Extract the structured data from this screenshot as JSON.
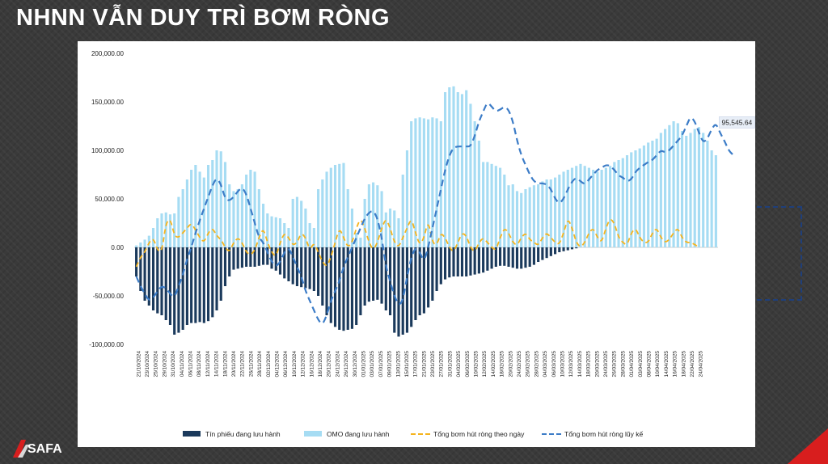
{
  "slide": {
    "title": "NHNN VẪN DUY TRÌ BƠM RÒNG",
    "logo_text": "SAFA"
  },
  "chart_data": {
    "type": "bar",
    "title": "",
    "xlabel": "",
    "ylabel": "",
    "ylim": [
      -100000,
      200000
    ],
    "y_ticks": [
      "200,000.00",
      "150,000.00",
      "100,000.00",
      "50,000.00",
      "0.00",
      "-50,000.00",
      "-100,000.00"
    ],
    "y_tick_values": [
      200000,
      150000,
      100000,
      50000,
      0,
      -50000,
      -100000
    ],
    "x_labels": [
      "21/10/2024",
      "23/10/2024",
      "25/10/2024",
      "29/10/2024",
      "31/10/2024",
      "04/11/2024",
      "06/11/2024",
      "08/11/2024",
      "12/11/2024",
      "14/11/2024",
      "18/11/2024",
      "20/11/2024",
      "22/11/2024",
      "26/11/2024",
      "28/11/2024",
      "02/12/2024",
      "04/12/2024",
      "06/12/2024",
      "10/12/2024",
      "12/12/2024",
      "16/12/2024",
      "18/12/2024",
      "20/12/2024",
      "24/12/2024",
      "26/12/2024",
      "30/12/2024",
      "01/01/2025",
      "03/01/2025",
      "07/01/2025",
      "09/01/2025",
      "13/01/2025",
      "15/01/2025",
      "17/01/2025",
      "21/01/2025",
      "23/01/2025",
      "27/01/2025",
      "31/01/2025",
      "04/02/2025",
      "06/02/2025",
      "10/02/2025",
      "12/02/2025",
      "14/02/2025",
      "18/02/2025",
      "20/02/2025",
      "24/02/2025",
      "26/02/2025",
      "28/02/2025",
      "04/03/2025",
      "06/03/2025",
      "10/03/2025",
      "12/03/2025",
      "14/03/2025",
      "18/03/2025",
      "20/03/2025",
      "24/03/2025",
      "26/03/2025",
      "28/03/2025",
      "01/04/2025",
      "03/04/2025",
      "08/04/2025",
      "10/04/2025",
      "14/04/2025",
      "16/04/2025",
      "18/04/2025",
      "22/04/2025",
      "24/04/2025"
    ],
    "grid": false,
    "legend_position": "bottom",
    "series": [
      {
        "name": "Tín phiếu đang lưu hành",
        "type": "bar",
        "color": "#1b3a5c",
        "values": [
          -30000,
          -45000,
          -55000,
          -60000,
          -65000,
          -68000,
          -70000,
          -75000,
          -80000,
          -90000,
          -88000,
          -85000,
          -80000,
          -78000,
          -78000,
          -77000,
          -78000,
          -76000,
          -72000,
          -65000,
          -55000,
          -40000,
          -30000,
          -23000,
          -22000,
          -21000,
          -20000,
          -20000,
          -20000,
          -19000,
          -18000,
          -18000,
          -22000,
          -24000,
          -28000,
          -32000,
          -35000,
          -38000,
          -40000,
          -41000,
          -42000,
          -43000,
          -45000,
          -50000,
          -60000,
          -70000,
          -78000,
          -82000,
          -85000,
          -86000,
          -85000,
          -84000,
          -80000,
          -70000,
          -60000,
          -56000,
          -55000,
          -54000,
          -58000,
          -65000,
          -70000,
          -88000,
          -92000,
          -90000,
          -88000,
          -82000,
          -75000,
          -70000,
          -68000,
          -62000,
          -55000,
          -45000,
          -38000,
          -33000,
          -31000,
          -30000,
          -30000,
          -30000,
          -30000,
          -29000,
          -28000,
          -27000,
          -26000,
          -24000,
          -22000,
          -20000,
          -19000,
          -19000,
          -20000,
          -21000,
          -22000,
          -22000,
          -21000,
          -20000,
          -18000,
          -15000,
          -13000,
          -11000,
          -9000,
          -7000,
          -5000,
          -4000,
          -3000,
          -2000,
          -1000,
          0,
          0,
          0,
          0,
          0,
          0,
          0,
          0,
          0,
          0,
          0,
          0,
          0,
          0,
          0,
          0,
          0,
          0,
          0,
          0,
          0,
          0,
          0,
          0,
          0,
          0,
          0,
          0,
          0,
          0,
          0,
          0,
          0,
          0,
          0,
          0,
          0,
          0,
          0,
          0,
          0
        ]
      },
      {
        "name": "OMO đang lưu hành",
        "type": "bar",
        "color": "#a6dcf3",
        "values": [
          2000,
          5000,
          8000,
          12000,
          20000,
          30000,
          35000,
          36000,
          34000,
          35000,
          52000,
          60000,
          70000,
          80000,
          85000,
          78000,
          72000,
          85000,
          90000,
          100000,
          99000,
          88000,
          65000,
          58000,
          60000,
          65000,
          75000,
          80000,
          78000,
          60000,
          45000,
          35000,
          32000,
          31000,
          30000,
          25000,
          20000,
          50000,
          52000,
          48000,
          40000,
          25000,
          20000,
          60000,
          70000,
          78000,
          82000,
          85000,
          86000,
          87000,
          60000,
          40000,
          15000,
          10000,
          50000,
          65000,
          67000,
          64000,
          58000,
          36000,
          40000,
          38000,
          30000,
          75000,
          100000,
          130000,
          133000,
          134000,
          133000,
          132000,
          134000,
          133000,
          130000,
          160000,
          165000,
          166000,
          160000,
          158000,
          162000,
          148000,
          130000,
          110000,
          88000,
          88000,
          86000,
          84000,
          82000,
          75000,
          64000,
          65000,
          58000,
          56000,
          60000,
          62000,
          64000,
          65000,
          68000,
          70000,
          70000,
          72000,
          75000,
          78000,
          80000,
          82000,
          84000,
          86000,
          84000,
          82000,
          80000,
          78000,
          80000,
          82000,
          84000,
          88000,
          90000,
          92000,
          95000,
          98000,
          100000,
          102000,
          105000,
          108000,
          110000,
          112000,
          118000,
          122000,
          126000,
          130000,
          128000,
          120000,
          115000,
          118000,
          122000,
          124000,
          118000,
          110000,
          100000,
          95000
        ]
      },
      {
        "name": "Tổng bơm hút ròng theo ngày",
        "type": "line",
        "color": "#f5b41e",
        "values": [
          -20000,
          -10000,
          -5000,
          5000,
          10000,
          -3000,
          -5000,
          25000,
          30000,
          12000,
          10000,
          15000,
          20000,
          25000,
          18000,
          10000,
          5000,
          15000,
          20000,
          12000,
          8000,
          0,
          -5000,
          5000,
          10000,
          5000,
          -5000,
          -8000,
          -3000,
          10000,
          20000,
          5000,
          -5000,
          -10000,
          5000,
          15000,
          10000,
          2000,
          5000,
          15000,
          10000,
          -3000,
          5000,
          -5000,
          -15000,
          -20000,
          -10000,
          5000,
          20000,
          10000,
          0,
          5000,
          20000,
          30000,
          20000,
          5000,
          -3000,
          5000,
          20000,
          30000,
          20000,
          5000,
          0,
          10000,
          20000,
          30000,
          15000,
          2000,
          10000,
          28000,
          5000,
          2000,
          15000,
          10000,
          0,
          -5000,
          5000,
          15000,
          12000,
          0,
          -5000,
          5000,
          10000,
          5000,
          0,
          -3000,
          10000,
          20000,
          15000,
          5000,
          2000,
          10000,
          15000,
          8000,
          5000,
          2000,
          10000,
          15000,
          10000,
          5000,
          3000,
          15000,
          30000,
          20000,
          5000,
          0,
          5000,
          15000,
          20000,
          10000,
          5000,
          20000,
          30000,
          25000,
          10000,
          5000,
          2000,
          15000,
          20000,
          10000,
          5000,
          5000,
          15000,
          20000,
          10000,
          5000,
          8000,
          15000,
          20000,
          10000,
          5000,
          5000,
          3000,
          0
        ]
      },
      {
        "name": "Tổng bơm hút ròng lũy kế",
        "type": "line",
        "color": "#3c7cc7",
        "values": [
          -30000,
          -40000,
          -48000,
          -55000,
          -52000,
          -45000,
          -40000,
          -42000,
          -48000,
          -52000,
          -40000,
          -28000,
          -12000,
          0,
          15000,
          28000,
          40000,
          52000,
          64000,
          72000,
          65000,
          50000,
          48000,
          52000,
          58000,
          62000,
          55000,
          40000,
          25000,
          10000,
          5000,
          -5000,
          -15000,
          -20000,
          -15000,
          -5000,
          0,
          -10000,
          -20000,
          -30000,
          -45000,
          -55000,
          -65000,
          -75000,
          -80000,
          -70000,
          -55000,
          -45000,
          -35000,
          -20000,
          -10000,
          0,
          10000,
          20000,
          30000,
          36000,
          38000,
          30000,
          10000,
          -20000,
          -35000,
          -50000,
          -60000,
          -55000,
          -30000,
          -10000,
          0,
          -5000,
          -15000,
          0,
          20000,
          40000,
          60000,
          80000,
          95000,
          103000,
          104000,
          104000,
          104000,
          104000,
          115000,
          130000,
          140000,
          150000,
          145000,
          140000,
          142000,
          145000,
          142000,
          130000,
          110000,
          95000,
          85000,
          75000,
          68000,
          66000,
          66000,
          65000,
          60000,
          50000,
          45000,
          50000,
          60000,
          68000,
          72000,
          68000,
          65000,
          70000,
          75000,
          80000,
          82000,
          85000,
          84000,
          80000,
          74000,
          72000,
          68000,
          70000,
          78000,
          82000,
          85000,
          88000,
          90000,
          95000,
          100000,
          98000,
          100000,
          105000,
          110000,
          115000,
          125000,
          135000,
          130000,
          118000,
          108000,
          112000,
          122000,
          128000,
          118000,
          110000,
          100000,
          95546
        ]
      }
    ],
    "annotations": [
      {
        "text": "95,545.64",
        "series": "Tổng bơm hút ròng lũy kế",
        "position": "last-point"
      }
    ]
  }
}
